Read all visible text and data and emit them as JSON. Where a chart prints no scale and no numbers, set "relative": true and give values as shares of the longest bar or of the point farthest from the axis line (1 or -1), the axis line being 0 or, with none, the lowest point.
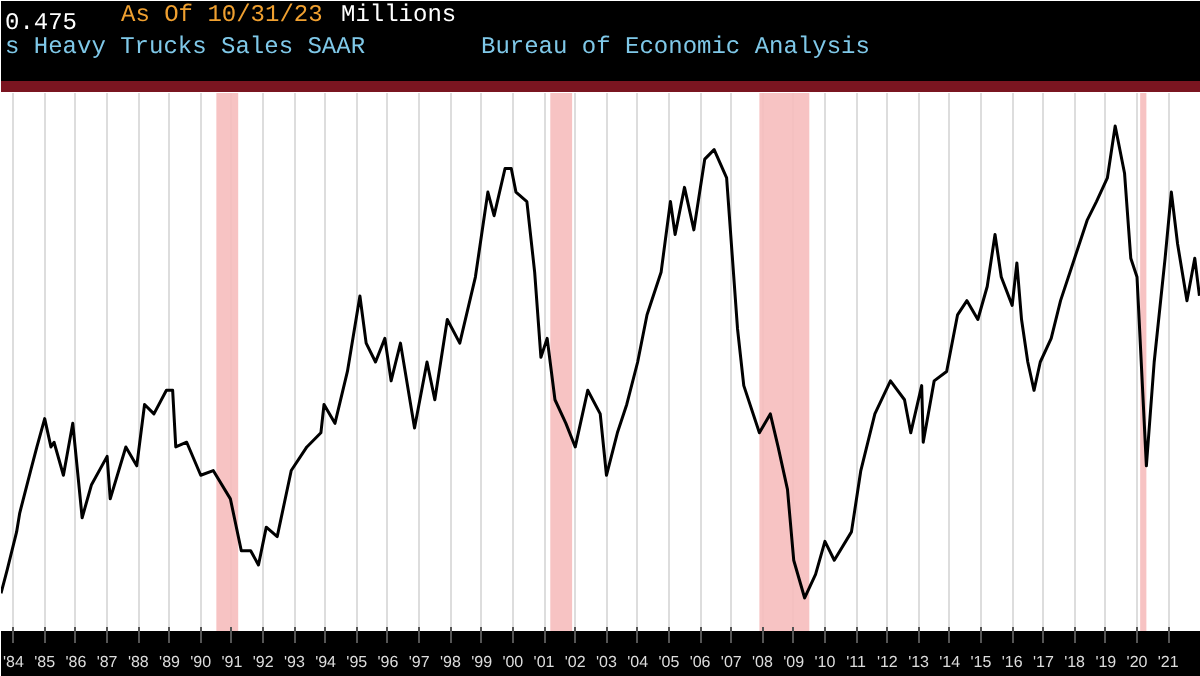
{
  "chart_data": {
    "type": "line",
    "title": "s Heavy Trucks Sales SAAR",
    "subtitle": "Bureau of Economic Analysis",
    "annotations": [
      "0.475",
      "As Of 10/31/23",
      "Millions"
    ],
    "relative": true,
    "x": [
      1983.6,
      1983.8,
      1984.1,
      1984.2,
      1984.55,
      1984.75,
      1985.0,
      1985.2,
      1985.3,
      1985.6,
      1985.9,
      1986.2,
      1986.5,
      1987.0,
      1987.1,
      1987.6,
      1987.95,
      1988.2,
      1988.5,
      1988.9,
      1989.1,
      1989.2,
      1989.55,
      1990.0,
      1990.4,
      1990.95,
      1991.3,
      1991.6,
      1991.85,
      1992.1,
      1992.45,
      1992.9,
      1993.4,
      1993.85,
      1993.95,
      1994.3,
      1994.7,
      1995.1,
      1995.3,
      1995.6,
      1995.9,
      1996.1,
      1996.4,
      1996.85,
      1997.25,
      1997.5,
      1997.9,
      1998.3,
      1998.8,
      1999.0,
      1999.2,
      1999.4,
      1999.75,
      1999.95,
      2000.1,
      2000.45,
      2000.7,
      2000.9,
      2001.1,
      2001.35,
      2001.7,
      2002.0,
      2002.4,
      2002.8,
      2003.0,
      2003.35,
      2003.65,
      2004.0,
      2004.3,
      2004.75,
      2005.05,
      2005.2,
      2005.5,
      2005.8,
      2006.15,
      2006.45,
      2006.85,
      2007.2,
      2007.4,
      2007.9,
      2008.25,
      2008.5,
      2008.8,
      2009.0,
      2009.35,
      2009.7,
      2010.0,
      2010.3,
      2010.85,
      2011.15,
      2011.6,
      2012.1,
      2012.55,
      2012.75,
      2013.1,
      2013.15,
      2013.5,
      2013.9,
      2014.25,
      2014.55,
      2014.9,
      2015.2,
      2015.45,
      2015.65,
      2016.0,
      2016.15,
      2016.3,
      2016.5,
      2016.7,
      2016.9,
      2017.25,
      2017.55,
      2018.0,
      2018.4,
      2018.7,
      2019.05,
      2019.3,
      2019.6,
      2019.8,
      2020.0,
      2020.3,
      2020.55,
      2020.9,
      2021.1,
      2021.3,
      2021.6,
      2021.85,
      2022.0
    ],
    "series": [
      {
        "color": "#000000",
        "values": [
          0.01,
          0.06,
          0.14,
          0.18,
          0.27,
          0.32,
          0.38,
          0.32,
          0.33,
          0.26,
          0.37,
          0.17,
          0.24,
          0.3,
          0.21,
          0.32,
          0.28,
          0.41,
          0.39,
          0.44,
          0.44,
          0.32,
          0.33,
          0.26,
          0.27,
          0.21,
          0.1,
          0.1,
          0.07,
          0.15,
          0.13,
          0.27,
          0.32,
          0.35,
          0.41,
          0.37,
          0.48,
          0.64,
          0.54,
          0.5,
          0.55,
          0.46,
          0.54,
          0.36,
          0.5,
          0.42,
          0.59,
          0.54,
          0.68,
          0.77,
          0.86,
          0.81,
          0.91,
          0.91,
          0.86,
          0.84,
          0.69,
          0.51,
          0.55,
          0.42,
          0.37,
          0.32,
          0.44,
          0.39,
          0.26,
          0.35,
          0.41,
          0.5,
          0.6,
          0.69,
          0.84,
          0.77,
          0.87,
          0.78,
          0.93,
          0.95,
          0.89,
          0.57,
          0.45,
          0.35,
          0.39,
          0.32,
          0.23,
          0.08,
          0.0,
          0.05,
          0.12,
          0.08,
          0.14,
          0.27,
          0.39,
          0.46,
          0.42,
          0.35,
          0.45,
          0.33,
          0.46,
          0.48,
          0.6,
          0.63,
          0.59,
          0.66,
          0.77,
          0.68,
          0.62,
          0.71,
          0.59,
          0.5,
          0.44,
          0.5,
          0.55,
          0.63,
          0.72,
          0.8,
          0.84,
          0.89,
          1.0,
          0.9,
          0.72,
          0.68,
          0.28,
          0.5,
          0.72,
          0.86,
          0.75,
          0.63,
          0.72,
          0.64
        ]
      }
    ],
    "xlim": [
      1983.6,
      2022.05
    ],
    "xticks": [
      {
        "value": 1984,
        "label": "'84"
      },
      {
        "value": 1985,
        "label": "'85"
      },
      {
        "value": 1986,
        "label": "'86"
      },
      {
        "value": 1987,
        "label": "'87"
      },
      {
        "value": 1988,
        "label": "'88"
      },
      {
        "value": 1989,
        "label": "'89"
      },
      {
        "value": 1990,
        "label": "'90"
      },
      {
        "value": 1991,
        "label": "'91"
      },
      {
        "value": 1992,
        "label": "'92"
      },
      {
        "value": 1993,
        "label": "'93"
      },
      {
        "value": 1994,
        "label": "'94"
      },
      {
        "value": 1995,
        "label": "'95"
      },
      {
        "value": 1996,
        "label": "'96"
      },
      {
        "value": 1997,
        "label": "'97"
      },
      {
        "value": 1998,
        "label": "'98"
      },
      {
        "value": 1999,
        "label": "'99"
      },
      {
        "value": 2000,
        "label": "'00"
      },
      {
        "value": 2001,
        "label": "'01"
      },
      {
        "value": 2002,
        "label": "'02"
      },
      {
        "value": 2003,
        "label": "'03"
      },
      {
        "value": 2004,
        "label": "'04"
      },
      {
        "value": 2005,
        "label": "'05"
      },
      {
        "value": 2006,
        "label": "'06"
      },
      {
        "value": 2007,
        "label": "'07"
      },
      {
        "value": 2008,
        "label": "'08"
      },
      {
        "value": 2009,
        "label": "'09"
      },
      {
        "value": 2010,
        "label": "'10"
      },
      {
        "value": 2011,
        "label": "'11"
      },
      {
        "value": 2012,
        "label": "'12"
      },
      {
        "value": 2013,
        "label": "'13"
      },
      {
        "value": 2014,
        "label": "'14"
      },
      {
        "value": 2015,
        "label": "'15"
      },
      {
        "value": 2016,
        "label": "'16"
      },
      {
        "value": 2017,
        "label": "'17"
      },
      {
        "value": 2018,
        "label": "'18"
      },
      {
        "value": 2019,
        "label": "'19"
      },
      {
        "value": 2020,
        "label": "'20"
      },
      {
        "value": 2021,
        "label": "'21"
      }
    ],
    "bands": [
      {
        "axis": "x",
        "from": 1990.5,
        "to": 1991.2,
        "color": "#f6bcbc"
      },
      {
        "axis": "x",
        "from": 2001.2,
        "to": 2001.9,
        "color": "#f6bcbc"
      },
      {
        "axis": "x",
        "from": 2007.9,
        "to": 2009.5,
        "color": "#f6bcbc"
      },
      {
        "axis": "x",
        "from": 2020.1,
        "to": 2020.3,
        "color": "#f6bcbc"
      }
    ],
    "grid": "x",
    "marker": "none",
    "line_style": "solid"
  }
}
